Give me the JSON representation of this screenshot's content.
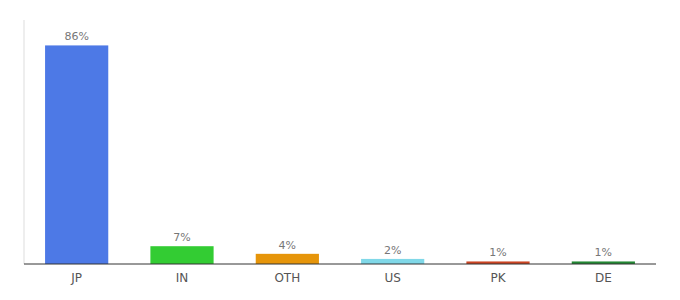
{
  "chart_data": {
    "type": "bar",
    "categories": [
      "JP",
      "IN",
      "OTH",
      "US",
      "PK",
      "DE"
    ],
    "values": [
      86,
      7,
      4,
      2,
      1,
      1
    ],
    "value_labels": [
      "86%",
      "7%",
      "4%",
      "2%",
      "1%",
      "1%"
    ],
    "colors": [
      "#4d79e6",
      "#33cc33",
      "#e6950a",
      "#80d8e8",
      "#cc4422",
      "#228833"
    ],
    "ylim": [
      0,
      96
    ],
    "data_labels": true,
    "tick_labels": "x",
    "grid": false
  }
}
